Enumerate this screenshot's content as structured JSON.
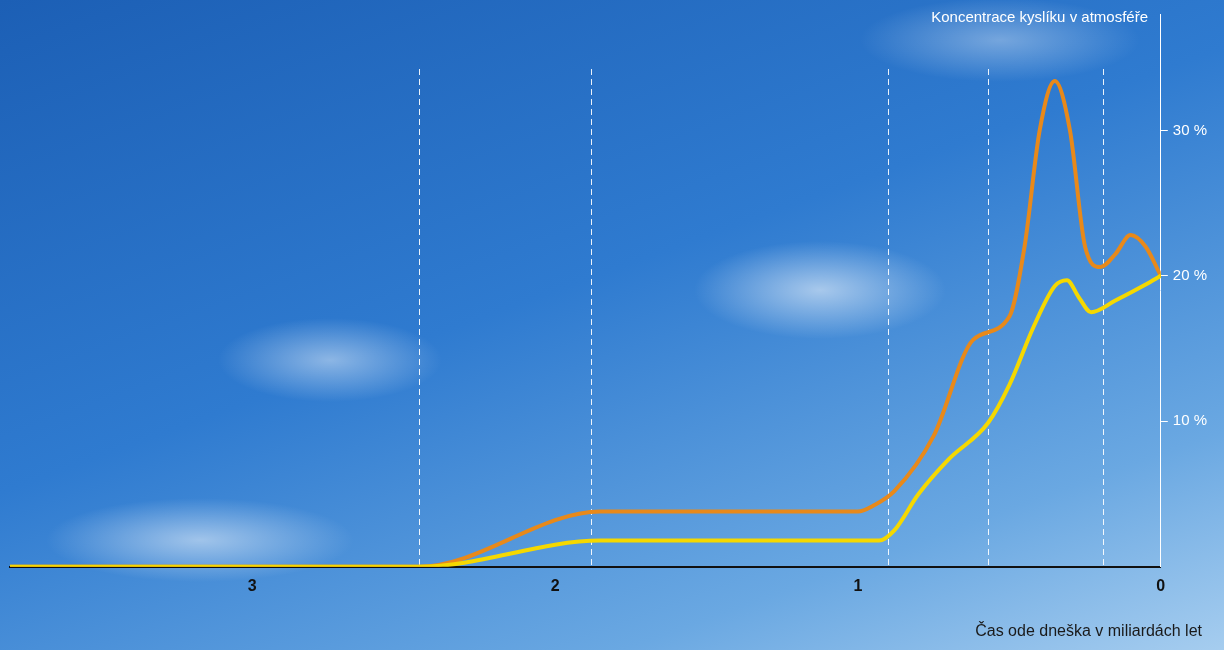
{
  "chart_data": {
    "type": "line",
    "y_label": "Koncentrace kyslíku v atmosféře",
    "x_label": "Čas ode dneška v miliardách let",
    "xlim": [
      3.8,
      0
    ],
    "xticks": [
      3,
      2,
      1,
      0
    ],
    "ylim": [
      0,
      38
    ],
    "yticks": [
      {
        "value": 10,
        "label": "10 %"
      },
      {
        "value": 20,
        "label": "20 %"
      },
      {
        "value": 30,
        "label": "30 %"
      }
    ],
    "grid": false,
    "vlines": [
      2.45,
      1.88,
      0.9,
      0.57,
      0.19
    ],
    "series": [
      {
        "color": "#e8891a",
        "x": [
          3.8,
          2.45,
          1.85,
          1.0,
          0.95,
          0.88,
          0.75,
          0.62,
          0.5,
          0.45,
          0.4,
          0.35,
          0.3,
          0.25,
          0.2,
          0.15,
          0.1,
          0.05,
          0
        ],
        "values": [
          0,
          0,
          3.8,
          3.8,
          4.2,
          5.2,
          9,
          15.6,
          17.2,
          22,
          30,
          33.4,
          30,
          22,
          20.6,
          21.5,
          22.8,
          22,
          20
        ]
      },
      {
        "color": "#f5d800",
        "x": [
          3.8,
          2.45,
          1.85,
          0.93,
          0.88,
          0.8,
          0.7,
          0.57,
          0.5,
          0.42,
          0.35,
          0.31,
          0.27,
          0.23,
          0.15,
          0.05,
          0
        ],
        "values": [
          0,
          0,
          1.8,
          1.8,
          2.5,
          5,
          7.4,
          9.9,
          12.5,
          16.5,
          19.3,
          19.7,
          18.5,
          17.5,
          18.3,
          19.4,
          20
        ]
      }
    ]
  }
}
